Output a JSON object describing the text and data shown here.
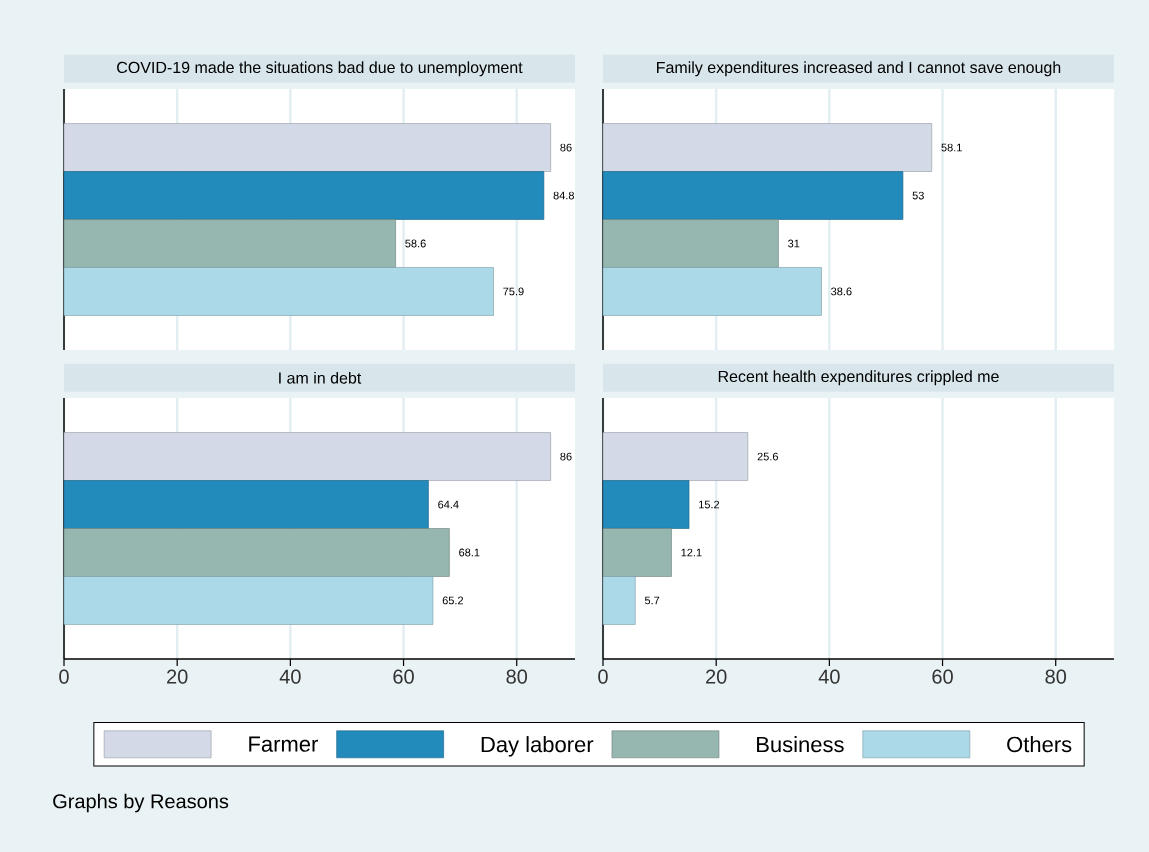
{
  "chart_data": [
    {
      "type": "bar",
      "orientation": "horizontal",
      "title": "COVID-19 made the situations bad due to unemployment",
      "categories": [
        null
      ],
      "series": [
        {
          "color": "#d3d9e6",
          "values": [
            86
          ]
        },
        {
          "color": "#238abc",
          "values": [
            84.8
          ]
        },
        {
          "color": "#96b7af",
          "values": [
            58.6
          ]
        },
        {
          "color": "#acd9e8",
          "values": [
            75.9
          ]
        }
      ],
      "xlim": [
        0,
        90.3
      ],
      "xticks": [
        0,
        20,
        40,
        60,
        80
      ],
      "grid": "x",
      "data_labels": true,
      "tick_labels": false
    },
    {
      "type": "bar",
      "orientation": "horizontal",
      "title": "Family expenditures increased and I cannot save enough",
      "categories": [
        null
      ],
      "series": [
        {
          "color": "#d3d9e6",
          "values": [
            58.1
          ]
        },
        {
          "color": "#238abc",
          "values": [
            53
          ]
        },
        {
          "color": "#96b7af",
          "values": [
            31
          ]
        },
        {
          "color": "#acd9e8",
          "values": [
            38.6
          ]
        }
      ],
      "xlim": [
        0,
        90.3
      ],
      "xticks": [
        0,
        20,
        40,
        60,
        80
      ],
      "grid": "x",
      "data_labels": true,
      "tick_labels": false
    },
    {
      "type": "bar",
      "orientation": "horizontal",
      "title": "I am in debt",
      "categories": [
        null
      ],
      "series": [
        {
          "name": "Farmer",
          "color": "#d3d9e6",
          "values": [
            86
          ]
        },
        {
          "name": "Day laborer",
          "color": "#238abc",
          "values": [
            64.4
          ]
        },
        {
          "name": "Business",
          "color": "#96b7af",
          "values": [
            68.1
          ]
        },
        {
          "name": "Others",
          "color": "#acd9e8",
          "values": [
            65.2
          ]
        }
      ],
      "xlim": [
        0,
        90.3
      ],
      "xticks": [
        0,
        20,
        40,
        60,
        80
      ],
      "grid": "x",
      "data_labels": true,
      "tick_labels": "x",
      "legend": "bottom",
      "annotations": [
        "Graphs by Reasons"
      ]
    },
    {
      "type": "bar",
      "orientation": "horizontal",
      "title": "Recent health expenditures crippled me",
      "categories": [
        null
      ],
      "series": [
        {
          "color": "#d3d9e6",
          "values": [
            25.6
          ]
        },
        {
          "color": "#238abc",
          "values": [
            15.2
          ]
        },
        {
          "color": "#96b7af",
          "values": [
            12.1
          ]
        },
        {
          "color": "#acd9e8",
          "values": [
            5.7
          ]
        }
      ],
      "xlim": [
        0,
        90.3
      ],
      "xticks": [
        0,
        20,
        40,
        60,
        80
      ],
      "grid": "x",
      "data_labels": true,
      "tick_labels": "x"
    }
  ]
}
